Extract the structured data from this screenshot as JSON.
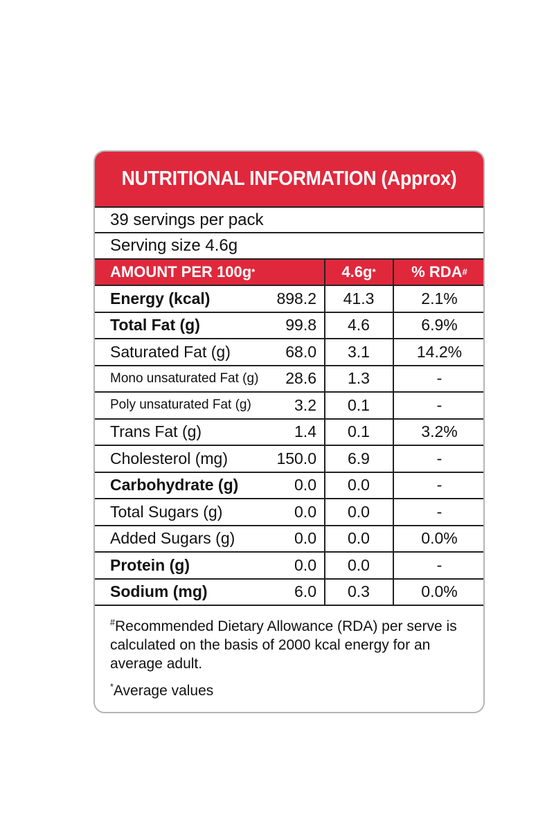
{
  "title": "NUTRITIONAL INFORMATION (Approx)",
  "servings": "39 servings per pack",
  "serving_size": "Serving size 4.6g",
  "header": {
    "amount": "AMOUNT PER 100g",
    "amount_mark": "*",
    "serving": "4.6g",
    "serving_mark": "*",
    "rda": "% RDA",
    "rda_mark": "#"
  },
  "rows": [
    {
      "name": "Energy (kcal)",
      "per100": "898.2",
      "perServe": "41.3",
      "rda": "2.1%"
    },
    {
      "name": "Total Fat (g)",
      "per100": "99.8",
      "perServe": "4.6",
      "rda": "6.9%"
    },
    {
      "name": "Saturated Fat (g)",
      "per100": "68.0",
      "perServe": "3.1",
      "rda": "14.2%"
    },
    {
      "name": "Mono unsaturated Fat (g)",
      "per100": "28.6",
      "perServe": "1.3",
      "rda": "-"
    },
    {
      "name": "Poly unsaturated Fat (g)",
      "per100": "3.2",
      "perServe": "0.1",
      "rda": "-"
    },
    {
      "name": "Trans Fat (g)",
      "per100": "1.4",
      "perServe": "0.1",
      "rda": "3.2%"
    },
    {
      "name": "Cholesterol (mg)",
      "per100": "150.0",
      "perServe": "6.9",
      "rda": "-"
    },
    {
      "name": "Carbohydrate (g)",
      "per100": "0.0",
      "perServe": "0.0",
      "rda": "-"
    },
    {
      "name": "Total Sugars (g)",
      "per100": "0.0",
      "perServe": "0.0",
      "rda": "-"
    },
    {
      "name": "Added Sugars (g)",
      "per100": "0.0",
      "perServe": "0.0",
      "rda": "0.0%"
    },
    {
      "name": "Protein (g)",
      "per100": "0.0",
      "perServe": "0.0",
      "rda": "-"
    },
    {
      "name": "Sodium (mg)",
      "per100": "6.0",
      "perServe": "0.3",
      "rda": "0.0%"
    }
  ],
  "footnote_rda_mark": "#",
  "footnote_rda": "Recommended Dietary Allowance (RDA) per serve is calculated on the basis of 2000 kcal energy for an average adult.",
  "footnote_avg_mark": "*",
  "footnote_avg": "Average values"
}
